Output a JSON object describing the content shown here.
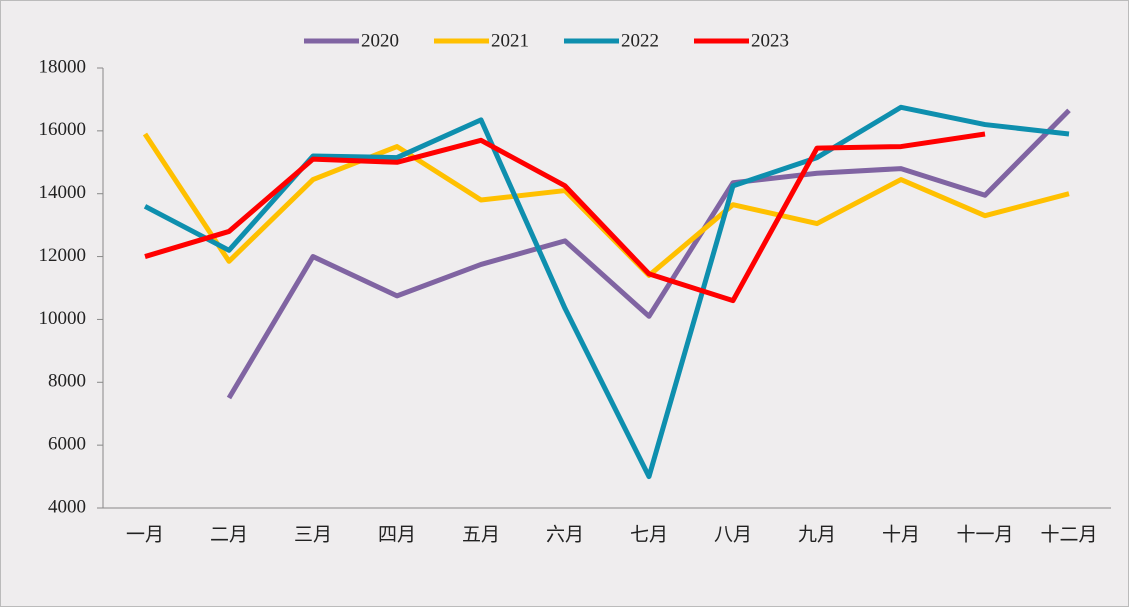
{
  "chart_data": {
    "type": "line",
    "categories": [
      "一月",
      "二月",
      "三月",
      "四月",
      "五月",
      "六月",
      "七月",
      "八月",
      "九月",
      "十月",
      "十一月",
      "十二月"
    ],
    "series": [
      {
        "name": "2020",
        "color": "#8064a2",
        "values": [
          null,
          7500,
          12000,
          10750,
          11750,
          12500,
          10100,
          14350,
          14650,
          14800,
          13950,
          16650
        ]
      },
      {
        "name": "2021",
        "color": "#ffc000",
        "values": [
          15900,
          11850,
          14450,
          15500,
          13800,
          14100,
          11400,
          13650,
          13050,
          14450,
          13300,
          14000
        ]
      },
      {
        "name": "2022",
        "color": "#0e8fae",
        "values": [
          13600,
          12200,
          15200,
          15150,
          16350,
          10350,
          5000,
          14250,
          15150,
          16750,
          16200,
          15900
        ]
      },
      {
        "name": "2023",
        "color": "#ff0000",
        "values": [
          12000,
          12800,
          15100,
          15000,
          15700,
          14250,
          11450,
          10600,
          15450,
          15500,
          15900,
          null
        ]
      }
    ],
    "ylim": [
      4000,
      18000
    ],
    "yticks": [
      4000,
      6000,
      8000,
      10000,
      12000,
      14000,
      16000,
      18000
    ],
    "grid": false,
    "legend": "top"
  }
}
